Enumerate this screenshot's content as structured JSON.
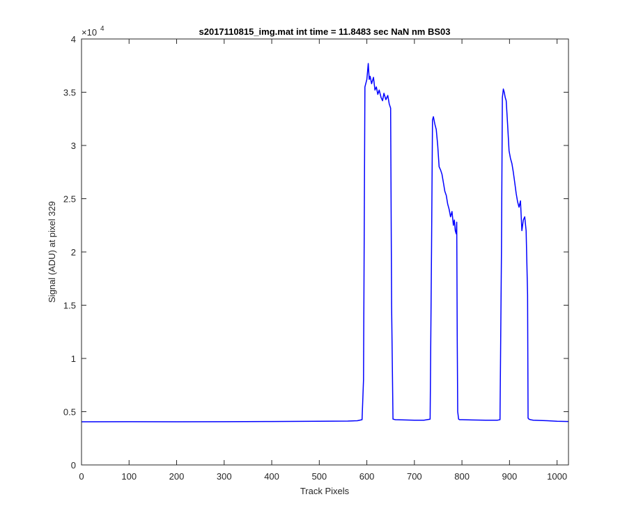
{
  "chart_data": {
    "type": "line",
    "title": "s2017110815_img.mat int time = 11.8483 sec  NaN nm BS03",
    "xlabel": "Track Pixels",
    "ylabel": "Signal (ADU) at pixel 329",
    "xlim": [
      0,
      1024
    ],
    "ylim": [
      0,
      40000
    ],
    "x_ticks": [
      0,
      100,
      200,
      300,
      400,
      500,
      600,
      700,
      800,
      900,
      1000
    ],
    "x_tick_labels": [
      "0",
      "100",
      "200",
      "300",
      "400",
      "500",
      "600",
      "700",
      "800",
      "900",
      "1000"
    ],
    "y_ticks": [
      0,
      5000,
      10000,
      15000,
      20000,
      25000,
      30000,
      35000,
      40000
    ],
    "y_tick_labels": [
      "0",
      "0.5",
      "1",
      "1.5",
      "2",
      "2.5",
      "3",
      "3.5",
      "4"
    ],
    "y_exponent_label": "×10",
    "y_exponent_power": "4",
    "grid": false,
    "series": [
      {
        "color": "#0000ff",
        "x": [
          0,
          100,
          200,
          300,
          400,
          500,
          560,
          580,
          590,
          593,
          596,
          600,
          603,
          605,
          607,
          610,
          614,
          617,
          620,
          623,
          626,
          630,
          633,
          636,
          640,
          644,
          647,
          650,
          652,
          655,
          660,
          680,
          700,
          720,
          733,
          736,
          738,
          740,
          743,
          746,
          749,
          752,
          755,
          758,
          761,
          764,
          767,
          770,
          773,
          776,
          779,
          782,
          784,
          786,
          788,
          789,
          790,
          791,
          793,
          795,
          800,
          820,
          850,
          875,
          880,
          883,
          885,
          887,
          889,
          891,
          893,
          896,
          899,
          902,
          905,
          908,
          911,
          914,
          917,
          920,
          923,
          926,
          929,
          932,
          935,
          938,
          939,
          941,
          944,
          950,
          980,
          1000,
          1024
        ],
        "y": [
          4050,
          4060,
          4050,
          4060,
          4080,
          4100,
          4120,
          4150,
          4250,
          8000,
          35500,
          36200,
          37700,
          36200,
          36500,
          35800,
          36400,
          35200,
          35500,
          34800,
          35200,
          34500,
          34200,
          34900,
          34300,
          34700,
          33900,
          33500,
          15000,
          4300,
          4250,
          4220,
          4200,
          4200,
          4300,
          20000,
          32400,
          32700,
          32000,
          31500,
          30000,
          28000,
          27700,
          27300,
          26500,
          25700,
          25300,
          24500,
          24000,
          23300,
          23800,
          22500,
          23000,
          22000,
          21700,
          22800,
          12000,
          5000,
          4300,
          4250,
          4250,
          4220,
          4200,
          4200,
          4250,
          20000,
          34500,
          35300,
          35000,
          34500,
          34200,
          32000,
          29500,
          28800,
          28300,
          27500,
          26500,
          25500,
          24700,
          24200,
          24800,
          22000,
          23000,
          23300,
          22000,
          16000,
          4400,
          4300,
          4250,
          4200,
          4150,
          4100,
          4080
        ]
      }
    ]
  }
}
